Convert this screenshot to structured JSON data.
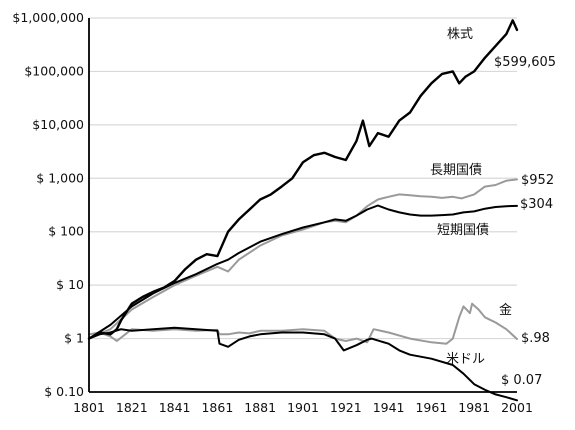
{
  "chart_data": {
    "type": "line",
    "y_scale": "log",
    "ylim": [
      0.1,
      1000000
    ],
    "xlim": [
      1801,
      2001
    ],
    "grid": true,
    "x_ticks": [
      "1801",
      "1821",
      "1841",
      "1861",
      "1881",
      "1901",
      "1921",
      "1941",
      "1961",
      "1981",
      "2001"
    ],
    "y_ticks": [
      {
        "value": 1000000,
        "label": "$1,000,000"
      },
      {
        "value": 100000,
        "label": "$100,000"
      },
      {
        "value": 10000,
        "label": "$10,000"
      },
      {
        "value": 1000,
        "label": "$ 1,000"
      },
      {
        "value": 100,
        "label": "$ 100"
      },
      {
        "value": 10,
        "label": "$ 10"
      },
      {
        "value": 1,
        "label": "$ 1"
      },
      {
        "value": 0.1,
        "label": "$ 0.10"
      }
    ],
    "series": [
      {
        "name": "株式",
        "color": "#000000",
        "end_label": "$599,605",
        "points": [
          [
            1801,
            1.0
          ],
          [
            1806,
            1.3
          ],
          [
            1811,
            1.2
          ],
          [
            1814,
            1.5
          ],
          [
            1816,
            2.2
          ],
          [
            1821,
            4.5
          ],
          [
            1826,
            6.0
          ],
          [
            1831,
            7.5
          ],
          [
            1836,
            9.0
          ],
          [
            1841,
            12
          ],
          [
            1846,
            20
          ],
          [
            1851,
            30
          ],
          [
            1856,
            38
          ],
          [
            1861,
            35
          ],
          [
            1866,
            100
          ],
          [
            1871,
            170
          ],
          [
            1876,
            260
          ],
          [
            1881,
            400
          ],
          [
            1886,
            500
          ],
          [
            1891,
            700
          ],
          [
            1896,
            1000
          ],
          [
            1901,
            2000
          ],
          [
            1906,
            2700
          ],
          [
            1911,
            3000
          ],
          [
            1916,
            2500
          ],
          [
            1921,
            2200
          ],
          [
            1926,
            5000
          ],
          [
            1929,
            12000
          ],
          [
            1932,
            4000
          ],
          [
            1936,
            7000
          ],
          [
            1941,
            6000
          ],
          [
            1946,
            12000
          ],
          [
            1951,
            17000
          ],
          [
            1956,
            35000
          ],
          [
            1961,
            60000
          ],
          [
            1966,
            90000
          ],
          [
            1971,
            100000
          ],
          [
            1974,
            60000
          ],
          [
            1977,
            80000
          ],
          [
            1981,
            100000
          ],
          [
            1986,
            180000
          ],
          [
            1991,
            300000
          ],
          [
            1996,
            500000
          ],
          [
            1999,
            900000
          ],
          [
            2001,
            599605
          ]
        ]
      },
      {
        "name": "長期国債",
        "color": "#9a9a9a",
        "end_label": "$952",
        "points": [
          [
            1801,
            1.0
          ],
          [
            1811,
            1.5
          ],
          [
            1821,
            3.5
          ],
          [
            1831,
            6.0
          ],
          [
            1841,
            10
          ],
          [
            1851,
            15
          ],
          [
            1861,
            22
          ],
          [
            1866,
            18
          ],
          [
            1871,
            30
          ],
          [
            1881,
            55
          ],
          [
            1891,
            85
          ],
          [
            1901,
            110
          ],
          [
            1911,
            150
          ],
          [
            1916,
            160
          ],
          [
            1921,
            150
          ],
          [
            1926,
            200
          ],
          [
            1931,
            300
          ],
          [
            1936,
            400
          ],
          [
            1941,
            450
          ],
          [
            1946,
            500
          ],
          [
            1951,
            480
          ],
          [
            1956,
            460
          ],
          [
            1961,
            450
          ],
          [
            1966,
            430
          ],
          [
            1971,
            450
          ],
          [
            1975,
            420
          ],
          [
            1981,
            500
          ],
          [
            1986,
            700
          ],
          [
            1991,
            750
          ],
          [
            1996,
            900
          ],
          [
            2001,
            952
          ]
        ]
      },
      {
        "name": "短期国債",
        "color": "#000000",
        "end_label": "$304",
        "points": [
          [
            1801,
            1.0
          ],
          [
            1811,
            1.8
          ],
          [
            1821,
            4.0
          ],
          [
            1831,
            7.0
          ],
          [
            1841,
            11
          ],
          [
            1851,
            16
          ],
          [
            1861,
            25
          ],
          [
            1866,
            30
          ],
          [
            1871,
            40
          ],
          [
            1881,
            65
          ],
          [
            1891,
            90
          ],
          [
            1901,
            120
          ],
          [
            1911,
            150
          ],
          [
            1916,
            170
          ],
          [
            1921,
            160
          ],
          [
            1926,
            200
          ],
          [
            1931,
            260
          ],
          [
            1936,
            310
          ],
          [
            1941,
            260
          ],
          [
            1946,
            230
          ],
          [
            1951,
            210
          ],
          [
            1956,
            200
          ],
          [
            1961,
            200
          ],
          [
            1966,
            205
          ],
          [
            1971,
            210
          ],
          [
            1976,
            230
          ],
          [
            1981,
            240
          ],
          [
            1986,
            270
          ],
          [
            1991,
            290
          ],
          [
            1996,
            300
          ],
          [
            2001,
            304
          ]
        ]
      },
      {
        "name": "金",
        "color": "#9a9a9a",
        "end_label": "$.98",
        "points": [
          [
            1801,
            1.2
          ],
          [
            1806,
            1.3
          ],
          [
            1811,
            1.1
          ],
          [
            1814,
            0.9
          ],
          [
            1821,
            1.5
          ],
          [
            1831,
            1.4
          ],
          [
            1841,
            1.5
          ],
          [
            1851,
            1.4
          ],
          [
            1861,
            1.45
          ],
          [
            1862,
            1.2
          ],
          [
            1866,
            1.2
          ],
          [
            1871,
            1.3
          ],
          [
            1876,
            1.25
          ],
          [
            1881,
            1.4
          ],
          [
            1891,
            1.4
          ],
          [
            1901,
            1.5
          ],
          [
            1911,
            1.4
          ],
          [
            1916,
            1.0
          ],
          [
            1921,
            0.9
          ],
          [
            1926,
            1.0
          ],
          [
            1931,
            0.85
          ],
          [
            1934,
            1.5
          ],
          [
            1941,
            1.3
          ],
          [
            1951,
            1.0
          ],
          [
            1961,
            0.85
          ],
          [
            1968,
            0.8
          ],
          [
            1971,
            1.0
          ],
          [
            1974,
            2.5
          ],
          [
            1976,
            4.0
          ],
          [
            1979,
            3.0
          ],
          [
            1980,
            4.5
          ],
          [
            1983,
            3.5
          ],
          [
            1986,
            2.5
          ],
          [
            1991,
            2.0
          ],
          [
            1996,
            1.5
          ],
          [
            2001,
            0.98
          ]
        ]
      },
      {
        "name": "米ドル",
        "color": "#000000",
        "end_label": "$ 0.07",
        "points": [
          [
            1801,
            1.0
          ],
          [
            1806,
            1.2
          ],
          [
            1811,
            1.3
          ],
          [
            1816,
            1.5
          ],
          [
            1821,
            1.4
          ],
          [
            1831,
            1.5
          ],
          [
            1841,
            1.6
          ],
          [
            1851,
            1.5
          ],
          [
            1861,
            1.4
          ],
          [
            1862,
            0.8
          ],
          [
            1866,
            0.7
          ],
          [
            1871,
            0.95
          ],
          [
            1876,
            1.1
          ],
          [
            1881,
            1.2
          ],
          [
            1891,
            1.3
          ],
          [
            1901,
            1.3
          ],
          [
            1911,
            1.2
          ],
          [
            1916,
            1.0
          ],
          [
            1920,
            0.6
          ],
          [
            1926,
            0.75
          ],
          [
            1931,
            0.95
          ],
          [
            1933,
            1.0
          ],
          [
            1941,
            0.8
          ],
          [
            1946,
            0.6
          ],
          [
            1951,
            0.5
          ],
          [
            1961,
            0.42
          ],
          [
            1971,
            0.32
          ],
          [
            1976,
            0.22
          ],
          [
            1981,
            0.14
          ],
          [
            1986,
            0.11
          ],
          [
            1991,
            0.09
          ],
          [
            1996,
            0.08
          ],
          [
            2001,
            0.07
          ]
        ]
      }
    ]
  }
}
